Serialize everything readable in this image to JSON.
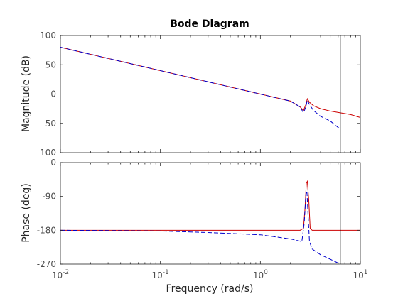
{
  "chart_data": {
    "type": "line",
    "title": "Bode Diagram",
    "xlabel": "Frequency  (rad/s)",
    "xscale": "log",
    "xlim": [
      0.01,
      10
    ],
    "x_ticks": [
      0.01,
      0.1,
      1,
      10
    ],
    "x_tick_bases": [
      "10",
      "10",
      "10",
      "10"
    ],
    "x_tick_exponents": [
      "-2",
      "-1",
      "0",
      "1"
    ],
    "vertical_marker_x": 6.3,
    "grid": false,
    "colors": {
      "series_a": "#cc0000",
      "series_b": "#0000cc",
      "marker": "#000000"
    },
    "panels": [
      {
        "name": "magnitude",
        "ylabel": "Magnitude (dB)",
        "ylim": [
          -100,
          100
        ],
        "y_ticks": [
          -100,
          -50,
          0,
          50,
          100
        ],
        "y_tick_labels": [
          "-100",
          "-50",
          "0",
          "50",
          "100"
        ],
        "series": [
          {
            "style": "solid",
            "color": "#cc0000",
            "x": [
              0.01,
              0.1,
              1,
              2,
              2.5,
              2.7,
              2.85,
              2.95,
              3.1,
              3.4,
              4,
              5,
              6.3,
              8,
              10
            ],
            "y": [
              80,
              40,
              0,
              -12,
              -22,
              -28,
              -18,
              -8,
              -14,
              -20,
              -25,
              -29,
              -32,
              -35,
              -40
            ]
          },
          {
            "style": "dashed",
            "color": "#0000cc",
            "x": [
              0.01,
              0.1,
              1,
              2,
              2.5,
              2.7,
              2.85,
              2.95,
              3.1,
              3.4,
              4,
              5,
              6.3
            ],
            "y": [
              80,
              40,
              0,
              -12,
              -22,
              -32,
              -22,
              -10,
              -18,
              -28,
              -38,
              -46,
              -60
            ]
          }
        ]
      },
      {
        "name": "phase",
        "ylabel": "Phase (deg)",
        "ylim": [
          -270,
          0
        ],
        "y_ticks": [
          -270,
          -180,
          -90,
          0
        ],
        "y_tick_labels": [
          "-270",
          "-180",
          "-90",
          "0"
        ],
        "series": [
          {
            "style": "solid",
            "color": "#cc0000",
            "x": [
              0.01,
              0.1,
              1,
              2.5,
              2.7,
              2.8,
              2.88,
              2.95,
              3.05,
              3.15,
              3.3,
              10
            ],
            "y": [
              -180,
              -180,
              -180,
              -180,
              -175,
              -120,
              -55,
              -50,
              -100,
              -175,
              -180,
              -180
            ]
          },
          {
            "style": "dashed",
            "color": "#0000cc",
            "x": [
              0.01,
              0.1,
              0.3,
              1,
              2,
              2.6,
              2.75,
              2.85,
              2.92,
              3.0,
              3.1,
              3.3,
              4,
              5,
              6.3
            ],
            "y": [
              -180,
              -182,
              -186,
              -192,
              -203,
              -210,
              -160,
              -85,
              -75,
              -140,
              -210,
              -230,
              -245,
              -257,
              -270
            ]
          }
        ]
      }
    ]
  }
}
